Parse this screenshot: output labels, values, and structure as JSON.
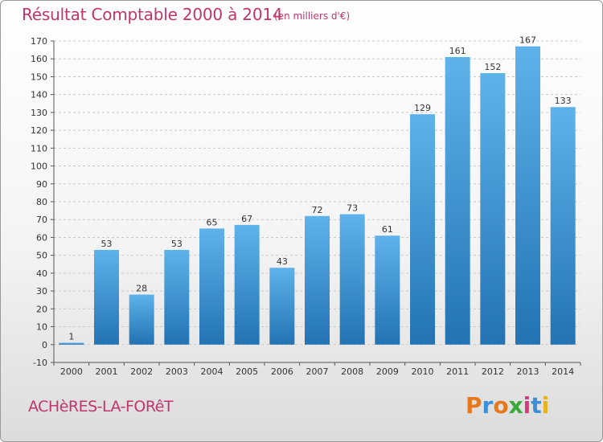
{
  "header": {
    "title": "Résultat Comptable 2000 à 2014",
    "subtitle": "(en milliers d'€)"
  },
  "footer": {
    "town": "ACHèRES-LA-FORêT",
    "logo": {
      "letters": [
        "P",
        "r",
        "o",
        "x",
        "i",
        "t",
        "i"
      ],
      "colors": [
        "#e8781c",
        "#3c8fd8",
        "#e8781c",
        "#3aa83a",
        "#d63a7a",
        "#3c8fd8",
        "#e8b21c"
      ]
    }
  },
  "colors": {
    "bar_light": "#5aaee8",
    "bar_dark": "#2878b8",
    "text": "#c0356b"
  },
  "chart_data": {
    "type": "bar",
    "categories": [
      "2000",
      "2001",
      "2002",
      "2003",
      "2004",
      "2005",
      "2006",
      "2007",
      "2008",
      "2009",
      "2010",
      "2011",
      "2012",
      "2013",
      "2014"
    ],
    "values": [
      1,
      53,
      28,
      53,
      65,
      67,
      43,
      72,
      73,
      61,
      129,
      161,
      152,
      167,
      133
    ],
    "data_labels": [
      "1",
      "53",
      "28",
      "53",
      "65",
      "67",
      "43",
      "72",
      "73",
      "61",
      "129",
      "161",
      "152",
      "167",
      "133"
    ],
    "y_ticks": [
      -10,
      0,
      10,
      20,
      30,
      40,
      50,
      60,
      70,
      80,
      90,
      100,
      110,
      120,
      130,
      140,
      150,
      160,
      170
    ],
    "ylim": [
      -10,
      170
    ],
    "grid": "horizontal dashed",
    "title": "Résultat Comptable 2000 à 2014",
    "xlabel": "",
    "ylabel": ""
  }
}
